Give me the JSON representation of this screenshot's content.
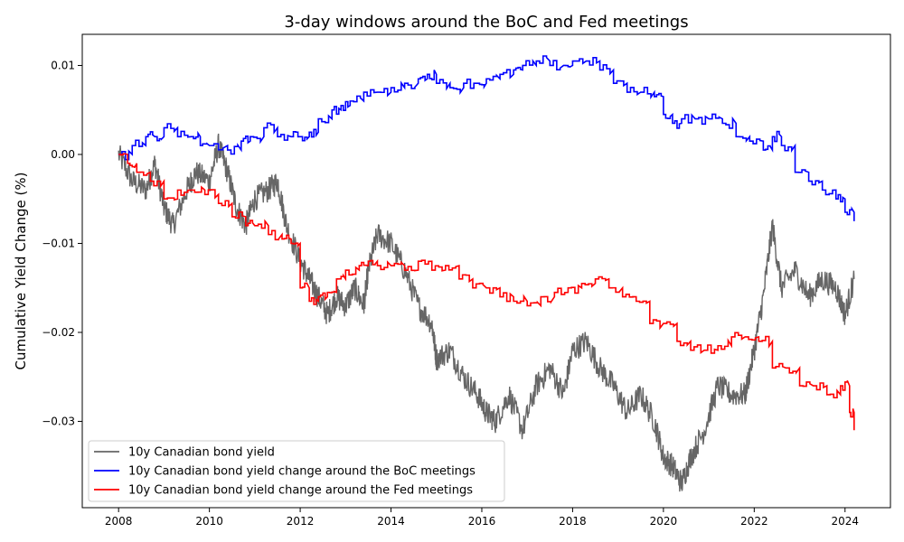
{
  "chart_data": {
    "type": "line",
    "title": "3-day windows around the BoC and Fed meetings",
    "xlabel": "",
    "ylabel": "Cumulative Yield Change (%)",
    "xlim": [
      2007.2,
      2025.0
    ],
    "ylim": [
      -0.0397,
      0.0135
    ],
    "x_ticks": [
      2008,
      2010,
      2012,
      2014,
      2016,
      2018,
      2020,
      2022,
      2024
    ],
    "y_ticks": [
      0.01,
      0.0,
      -0.01,
      -0.02,
      -0.03
    ],
    "y_tick_labels": [
      "0.01",
      "0.00",
      "−0.01",
      "−0.02",
      "−0.03"
    ],
    "grid": false,
    "legend_position": "lower-left",
    "series": [
      {
        "name": "10y Canadian bond yield",
        "color": "#666666",
        "style": "noisy",
        "x": [
          2008.0,
          2008.3,
          2008.6,
          2008.8,
          2009.0,
          2009.2,
          2009.5,
          2009.7,
          2010.0,
          2010.2,
          2010.4,
          2010.6,
          2010.8,
          2011.0,
          2011.3,
          2011.5,
          2011.7,
          2012.0,
          2012.2,
          2012.4,
          2012.6,
          2012.8,
          2013.0,
          2013.2,
          2013.4,
          2013.5,
          2013.7,
          2014.0,
          2014.3,
          2014.6,
          2014.9,
          2015.0,
          2015.3,
          2015.6,
          2015.9,
          2016.1,
          2016.3,
          2016.6,
          2016.9,
          2017.2,
          2017.5,
          2017.8,
          2018.0,
          2018.3,
          2018.6,
          2018.9,
          2019.2,
          2019.5,
          2019.8,
          2020.0,
          2020.2,
          2020.4,
          2020.6,
          2020.9,
          2021.2,
          2021.5,
          2021.8,
          2022.0,
          2022.2,
          2022.4,
          2022.6,
          2022.9,
          2023.2,
          2023.5,
          2023.8,
          2024.0,
          2024.2
        ],
        "y": [
          0.0,
          -0.003,
          -0.004,
          -0.001,
          -0.006,
          -0.008,
          -0.004,
          -0.002,
          -0.003,
          0.001,
          -0.002,
          -0.006,
          -0.008,
          -0.005,
          -0.004,
          -0.003,
          -0.008,
          -0.012,
          -0.014,
          -0.016,
          -0.018,
          -0.016,
          -0.017,
          -0.015,
          -0.017,
          -0.013,
          -0.009,
          -0.01,
          -0.013,
          -0.017,
          -0.019,
          -0.023,
          -0.022,
          -0.025,
          -0.027,
          -0.029,
          -0.03,
          -0.027,
          -0.031,
          -0.026,
          -0.024,
          -0.027,
          -0.022,
          -0.021,
          -0.024,
          -0.026,
          -0.029,
          -0.027,
          -0.03,
          -0.034,
          -0.035,
          -0.037,
          -0.034,
          -0.031,
          -0.026,
          -0.027,
          -0.027,
          -0.022,
          -0.016,
          -0.008,
          -0.015,
          -0.013,
          -0.016,
          -0.014,
          -0.015,
          -0.018,
          -0.014
        ]
      },
      {
        "name": "10y Canadian bond yield change around the BoC meetings",
        "color": "#0000ff",
        "style": "step",
        "x": [
          2008.0,
          2008.3,
          2008.6,
          2008.8,
          2009.0,
          2009.3,
          2009.6,
          2009.8,
          2010.0,
          2010.4,
          2010.7,
          2010.9,
          2011.2,
          2011.5,
          2011.8,
          2012.0,
          2012.2,
          2012.4,
          2012.7,
          2012.9,
          2013.1,
          2013.4,
          2013.7,
          2014.0,
          2014.3,
          2014.6,
          2014.8,
          2015.0,
          2015.3,
          2015.6,
          2015.9,
          2016.1,
          2016.4,
          2016.7,
          2016.9,
          2017.2,
          2017.5,
          2017.8,
          2018.0,
          2018.3,
          2018.6,
          2018.9,
          2019.2,
          2019.5,
          2019.8,
          2020.0,
          2020.2,
          2020.4,
          2020.7,
          2021.0,
          2021.3,
          2021.6,
          2021.9,
          2022.2,
          2022.4,
          2022.6,
          2022.9,
          2023.2,
          2023.5,
          2023.8,
          2024.0,
          2024.2
        ],
        "y": [
          0.0,
          0.001,
          0.002,
          0.002,
          0.003,
          0.002,
          0.002,
          0.001,
          0.001,
          0.0005,
          0.0015,
          0.002,
          0.003,
          0.002,
          0.002,
          0.002,
          0.0025,
          0.004,
          0.005,
          0.0055,
          0.006,
          0.007,
          0.007,
          0.0075,
          0.008,
          0.0085,
          0.009,
          0.008,
          0.0075,
          0.008,
          0.008,
          0.0085,
          0.009,
          0.0095,
          0.01,
          0.0105,
          0.01,
          0.01,
          0.0105,
          0.0105,
          0.0095,
          0.008,
          0.007,
          0.007,
          0.0065,
          0.0045,
          0.0035,
          0.004,
          0.004,
          0.004,
          0.0035,
          0.002,
          0.0015,
          0.0005,
          0.002,
          0.001,
          -0.002,
          -0.003,
          -0.004,
          -0.005,
          -0.0065,
          -0.0075
        ]
      },
      {
        "name": "10y Canadian bond yield change around the Fed meetings",
        "color": "#ff0000",
        "style": "step",
        "x": [
          2008.0,
          2008.2,
          2008.4,
          2008.7,
          2009.0,
          2009.3,
          2009.6,
          2009.9,
          2010.2,
          2010.5,
          2010.8,
          2011.0,
          2011.3,
          2011.6,
          2011.8,
          2012.0,
          2012.2,
          2012.4,
          2012.6,
          2012.8,
          2013.0,
          2013.3,
          2013.5,
          2013.7,
          2014.0,
          2014.3,
          2014.6,
          2014.9,
          2015.2,
          2015.5,
          2015.8,
          2016.1,
          2016.4,
          2016.7,
          2017.0,
          2017.3,
          2017.6,
          2017.9,
          2018.2,
          2018.5,
          2018.8,
          2019.1,
          2019.4,
          2019.7,
          2020.0,
          2020.3,
          2020.6,
          2020.9,
          2021.2,
          2021.5,
          2021.8,
          2022.1,
          2022.4,
          2022.7,
          2023.0,
          2023.3,
          2023.6,
          2023.9,
          2024.1,
          2024.2
        ],
        "y": [
          0.0,
          -0.001,
          -0.002,
          -0.003,
          -0.005,
          -0.004,
          -0.004,
          -0.0045,
          -0.0055,
          -0.007,
          -0.008,
          -0.008,
          -0.009,
          -0.0095,
          -0.01,
          -0.015,
          -0.0165,
          -0.016,
          -0.0155,
          -0.014,
          -0.013,
          -0.0125,
          -0.012,
          -0.0125,
          -0.0125,
          -0.013,
          -0.012,
          -0.013,
          -0.0125,
          -0.014,
          -0.015,
          -0.015,
          -0.016,
          -0.0165,
          -0.017,
          -0.016,
          -0.0155,
          -0.015,
          -0.0145,
          -0.014,
          -0.015,
          -0.016,
          -0.0165,
          -0.019,
          -0.019,
          -0.021,
          -0.022,
          -0.022,
          -0.0215,
          -0.0205,
          -0.0205,
          -0.021,
          -0.024,
          -0.024,
          -0.026,
          -0.026,
          -0.027,
          -0.026,
          -0.029,
          -0.031
        ]
      }
    ]
  }
}
